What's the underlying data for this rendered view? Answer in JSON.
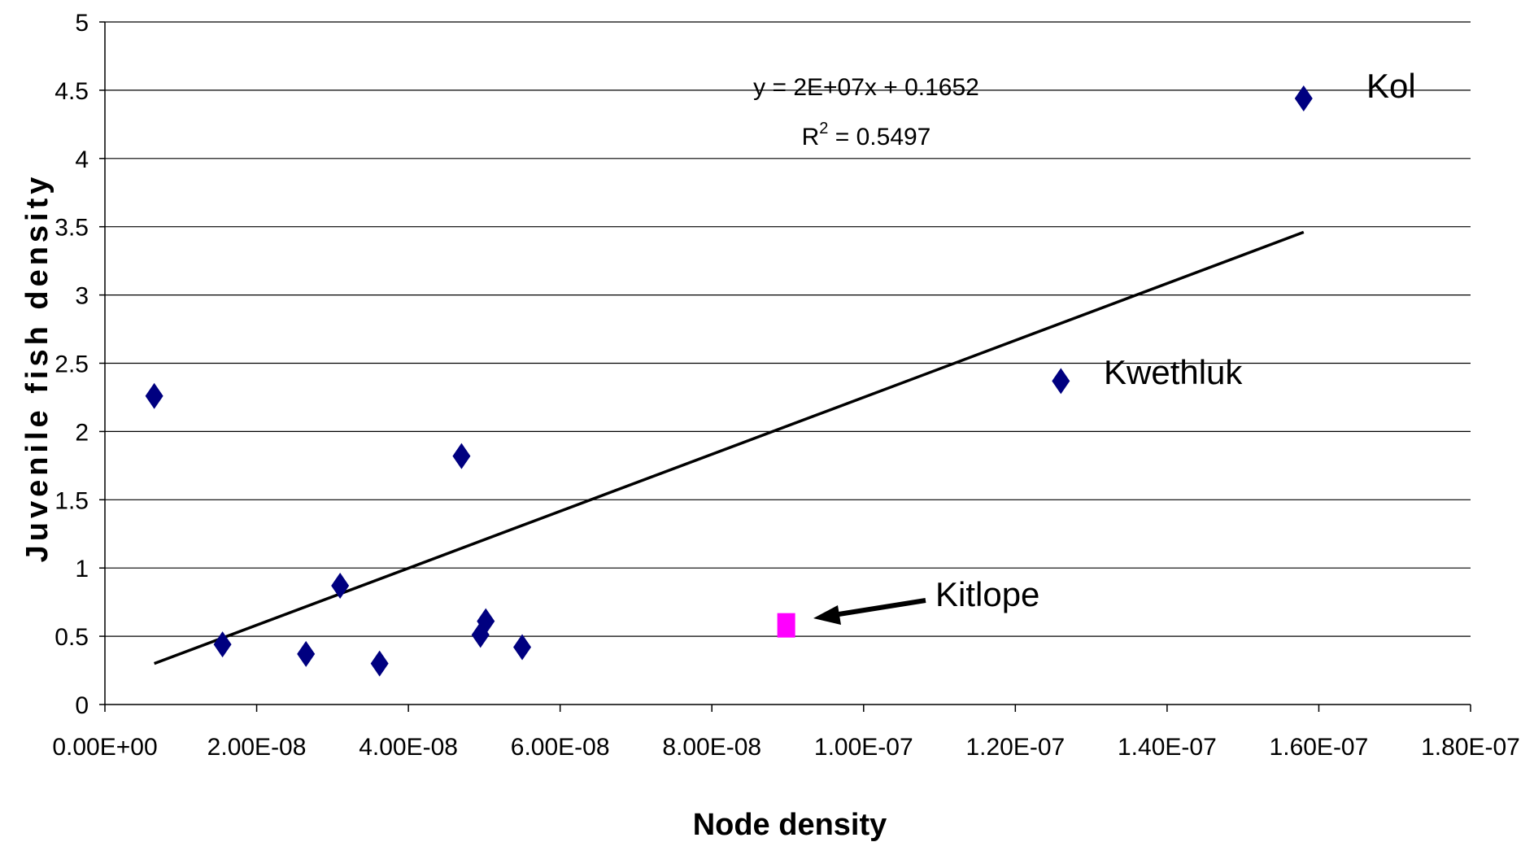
{
  "chart_data": {
    "type": "scatter",
    "title": "",
    "xlabel": "Node density",
    "ylabel": "Juvenile fish density",
    "xlim": [
      0,
      1.8e-07
    ],
    "ylim": [
      0,
      5
    ],
    "x_ticks": [
      0,
      2e-08,
      4e-08,
      6e-08,
      8e-08,
      1e-07,
      1.2e-07,
      1.4e-07,
      1.6e-07,
      1.8e-07
    ],
    "x_tick_labels": [
      "0.00E+00",
      "2.00E-08",
      "4.00E-08",
      "6.00E-08",
      "8.00E-08",
      "1.00E-07",
      "1.20E-07",
      "1.40E-07",
      "1.60E-07",
      "1.80E-07"
    ],
    "y_ticks": [
      0,
      0.5,
      1,
      1.5,
      2,
      2.5,
      3,
      3.5,
      4,
      4.5,
      5
    ],
    "y_tick_labels": [
      "0",
      "0.5",
      "1",
      "1.5",
      "2",
      "2.5",
      "3",
      "3.5",
      "4",
      "4.5",
      "5"
    ],
    "grid": "horizontal",
    "series": [
      {
        "marker": "diamond",
        "color": "#000080",
        "points": [
          {
            "x": 6.5e-09,
            "y": 2.26
          },
          {
            "x": 1.55e-08,
            "y": 0.44
          },
          {
            "x": 2.65e-08,
            "y": 0.37
          },
          {
            "x": 3.1e-08,
            "y": 0.87
          },
          {
            "x": 3.62e-08,
            "y": 0.3
          },
          {
            "x": 4.7e-08,
            "y": 1.82
          },
          {
            "x": 4.95e-08,
            "y": 0.51
          },
          {
            "x": 5.02e-08,
            "y": 0.61
          },
          {
            "x": 5.5e-08,
            "y": 0.42
          },
          {
            "x": 1.26e-07,
            "y": 2.37,
            "label": "Kwethluk"
          },
          {
            "x": 1.58e-07,
            "y": 4.44,
            "label": "Kol"
          }
        ]
      },
      {
        "marker": "square",
        "color": "#ff00ff",
        "points": [
          {
            "x": 8.98e-08,
            "y": 0.58,
            "label": "Kitlope"
          }
        ]
      }
    ],
    "trendline": {
      "type": "linear",
      "x_start": 6.5e-09,
      "x_end": 1.58e-07,
      "y_start": 0.3,
      "y_end": 3.46,
      "equation": "y = 2E+07x + 0.1652",
      "r2_prefix": "R",
      "r2_sup": "2",
      "r2_value": " = 0.5497"
    },
    "annotations": {
      "kol": "Kol",
      "kwethluk": "Kwethluk",
      "kitlope": "Kitlope"
    }
  }
}
